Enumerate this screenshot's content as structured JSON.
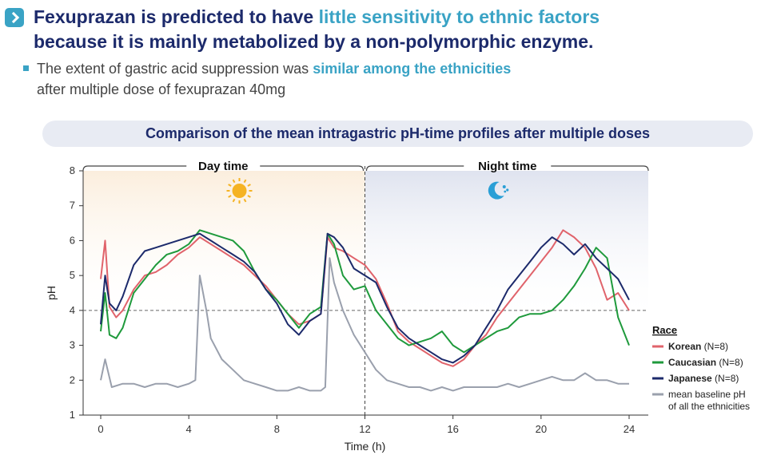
{
  "headline": {
    "line1_pre": "Fexuprazan is predicted to have ",
    "line1_hl": "little sensitivity to ethnic factors",
    "line2": "because it is mainly metabolized by a non-polymorphic enzyme."
  },
  "subline": {
    "pre": "The extent of gastric acid suppression was ",
    "hl": "similar among the ethnicities",
    "line2": "after multiple dose of fexuprazan 40mg"
  },
  "banner": "Comparison of the mean intragastric pH-time profiles after multiple doses",
  "chart_data": {
    "type": "line",
    "xlabel": "Time (h)",
    "ylabel": "pH",
    "xlim": [
      0,
      24
    ],
    "ylim": [
      1,
      8
    ],
    "xticks": [
      0,
      4,
      8,
      12,
      16,
      20,
      24
    ],
    "yticks": [
      1,
      2,
      3,
      4,
      5,
      6,
      7,
      8
    ],
    "reference_line": 4,
    "periods": [
      {
        "label": "Day time",
        "range": [
          0,
          12
        ]
      },
      {
        "label": "Night time",
        "range": [
          12,
          24
        ]
      }
    ],
    "legend_title": "Race",
    "legend_placement": "right",
    "series": [
      {
        "name": "Korean",
        "n_label": " (N=8)",
        "color": "#e0636b",
        "x": [
          0,
          0.2,
          0.4,
          0.7,
          1,
          1.5,
          2,
          2.5,
          3,
          3.5,
          4,
          4.5,
          5,
          5.5,
          6,
          6.5,
          7,
          7.5,
          8,
          8.5,
          9,
          9.5,
          10,
          10.3,
          10.6,
          11,
          11.5,
          12,
          12.5,
          13,
          13.5,
          14,
          14.5,
          15,
          15.5,
          16,
          16.5,
          17,
          17.5,
          18,
          18.5,
          19,
          19.5,
          20,
          20.5,
          21,
          21.5,
          22,
          22.5,
          23,
          23.5,
          24
        ],
        "y": [
          4.9,
          6.0,
          4.1,
          3.8,
          4.0,
          4.6,
          5.0,
          5.1,
          5.3,
          5.6,
          5.8,
          6.1,
          5.9,
          5.7,
          5.5,
          5.3,
          5.0,
          4.7,
          4.3,
          3.9,
          3.6,
          3.7,
          3.9,
          6.1,
          5.8,
          5.7,
          5.5,
          5.3,
          4.9,
          4.2,
          3.4,
          3.1,
          2.9,
          2.7,
          2.5,
          2.4,
          2.6,
          3.0,
          3.3,
          3.8,
          4.2,
          4.6,
          5.0,
          5.4,
          5.8,
          6.3,
          6.1,
          5.8,
          5.2,
          4.3,
          4.5,
          4.0
        ]
      },
      {
        "name": "Caucasian",
        "n_label": " (N=8)",
        "color": "#1f9a3c",
        "x": [
          0,
          0.2,
          0.4,
          0.7,
          1,
          1.5,
          2,
          2.5,
          3,
          3.5,
          4,
          4.5,
          5,
          5.5,
          6,
          6.5,
          7,
          7.5,
          8,
          8.5,
          9,
          9.5,
          10,
          10.3,
          10.6,
          11,
          11.5,
          12,
          12.5,
          13,
          13.5,
          14,
          14.5,
          15,
          15.5,
          16,
          16.5,
          17,
          17.5,
          18,
          18.5,
          19,
          19.5,
          20,
          20.5,
          21,
          21.5,
          22,
          22.5,
          23,
          23.5,
          24
        ],
        "y": [
          3.4,
          4.5,
          3.3,
          3.2,
          3.5,
          4.5,
          4.9,
          5.3,
          5.6,
          5.7,
          5.9,
          6.3,
          6.2,
          6.1,
          6.0,
          5.7,
          5.1,
          4.6,
          4.3,
          3.9,
          3.5,
          3.9,
          4.1,
          6.2,
          5.9,
          5.0,
          4.6,
          4.7,
          4.0,
          3.6,
          3.2,
          3.0,
          3.1,
          3.2,
          3.4,
          3.0,
          2.8,
          3.0,
          3.2,
          3.4,
          3.5,
          3.8,
          3.9,
          3.9,
          4.0,
          4.3,
          4.7,
          5.2,
          5.8,
          5.5,
          3.8,
          3.0
        ]
      },
      {
        "name": "Japanese",
        "n_label": " (N=8)",
        "color": "#1c2a6b",
        "x": [
          0,
          0.2,
          0.4,
          0.7,
          1,
          1.5,
          2,
          2.5,
          3,
          3.5,
          4,
          4.5,
          5,
          5.5,
          6,
          6.5,
          7,
          7.5,
          8,
          8.5,
          9,
          9.5,
          10,
          10.3,
          10.6,
          11,
          11.5,
          12,
          12.5,
          13,
          13.5,
          14,
          14.5,
          15,
          15.5,
          16,
          16.5,
          17,
          17.5,
          18,
          18.5,
          19,
          19.5,
          20,
          20.5,
          21,
          21.5,
          22,
          22.5,
          23,
          23.5,
          24
        ],
        "y": [
          3.6,
          5.0,
          4.2,
          4.0,
          4.4,
          5.3,
          5.7,
          5.8,
          5.9,
          6.0,
          6.1,
          6.2,
          6.0,
          5.8,
          5.6,
          5.4,
          5.1,
          4.6,
          4.2,
          3.6,
          3.3,
          3.7,
          3.9,
          6.2,
          6.1,
          5.8,
          5.2,
          5.0,
          4.8,
          4.1,
          3.5,
          3.2,
          3.0,
          2.8,
          2.6,
          2.5,
          2.7,
          3.0,
          3.5,
          4.0,
          4.6,
          5.0,
          5.4,
          5.8,
          6.1,
          5.9,
          5.6,
          5.9,
          5.5,
          5.2,
          4.9,
          4.3
        ]
      },
      {
        "name": "mean baseline pH",
        "name2": "of all the ethnicities",
        "n_label": "",
        "color": "#9aa0ad",
        "x": [
          0,
          0.2,
          0.5,
          1,
          1.5,
          2,
          2.5,
          3,
          3.5,
          4,
          4.3,
          4.5,
          4.8,
          5,
          5.5,
          6,
          6.5,
          7,
          7.5,
          8,
          8.5,
          9,
          9.5,
          10,
          10.2,
          10.4,
          10.6,
          11,
          11.5,
          12,
          12.5,
          13,
          13.5,
          14,
          14.5,
          15,
          15.5,
          16,
          16.5,
          17,
          17.5,
          18,
          18.5,
          19,
          19.5,
          20,
          20.5,
          21,
          21.5,
          22,
          22.5,
          23,
          23.5,
          24
        ],
        "y": [
          2.0,
          2.6,
          1.8,
          1.9,
          1.9,
          1.8,
          1.9,
          1.9,
          1.8,
          1.9,
          2.0,
          5.0,
          4.0,
          3.2,
          2.6,
          2.3,
          2.0,
          1.9,
          1.8,
          1.7,
          1.7,
          1.8,
          1.7,
          1.7,
          1.8,
          5.5,
          4.8,
          4.0,
          3.3,
          2.8,
          2.3,
          2.0,
          1.9,
          1.8,
          1.8,
          1.7,
          1.8,
          1.7,
          1.8,
          1.8,
          1.8,
          1.8,
          1.9,
          1.8,
          1.9,
          2.0,
          2.1,
          2.0,
          2.0,
          2.2,
          2.0,
          2.0,
          1.9,
          1.9
        ]
      }
    ]
  }
}
